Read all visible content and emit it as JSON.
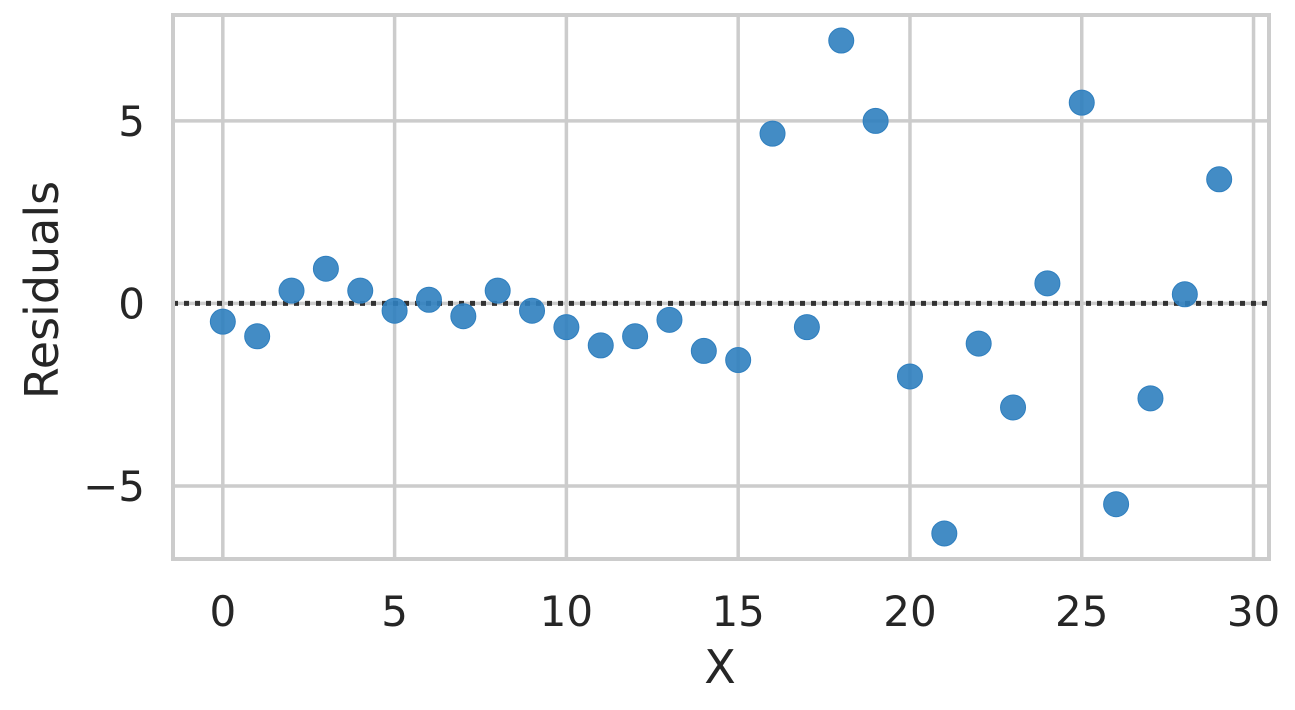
{
  "chart_data": {
    "type": "scatter",
    "title": "",
    "xlabel": "X",
    "ylabel": "Residuals",
    "xlim": [
      -1.45,
      30.45
    ],
    "ylim": [
      -7.0,
      7.9
    ],
    "x_ticks": [
      0,
      5,
      10,
      15,
      20,
      25,
      30
    ],
    "x_tick_labels": [
      "0",
      "5",
      "10",
      "15",
      "20",
      "25",
      "30"
    ],
    "y_ticks": [
      -5,
      0,
      5
    ],
    "y_tick_labels": [
      "−5",
      "0",
      "5"
    ],
    "grid": true,
    "reference_line": {
      "y": 0,
      "style": "dotted",
      "color": "#333333"
    },
    "colors": {
      "points": "#2f7fbf",
      "grid": "#cccccc",
      "frame": "#cccccc",
      "text": "#262626"
    },
    "series": [
      {
        "x": [
          0,
          1,
          2,
          3,
          4,
          5,
          6,
          7,
          8,
          9,
          10,
          11,
          12,
          13,
          14,
          15,
          16,
          17,
          18,
          19,
          20,
          21,
          22,
          23,
          24,
          25,
          26,
          27,
          28,
          29
        ],
        "y": [
          -0.5,
          -0.9,
          0.35,
          0.95,
          0.35,
          -0.2,
          0.1,
          -0.35,
          0.35,
          -0.2,
          -0.65,
          -1.15,
          -0.9,
          -0.45,
          -1.3,
          -1.55,
          4.65,
          -0.65,
          7.2,
          5.0,
          -2.0,
          -6.3,
          -1.1,
          -2.85,
          0.55,
          5.5,
          -5.5,
          -2.6,
          0.25,
          3.4
        ]
      }
    ]
  }
}
